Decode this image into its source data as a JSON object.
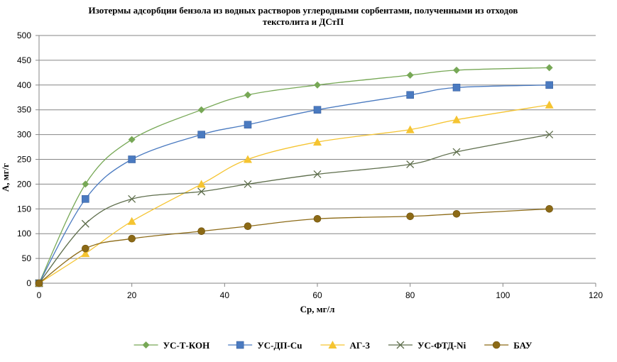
{
  "chart_data": {
    "type": "line",
    "title_line1": "Изотермы адсорбции бензола из водных растворов углеродными сорбентами, полученными из отходов",
    "title_line2": "текстолита и ДСтП",
    "xlabel": "Ср, мг/л",
    "ylabel": "А, мг/г",
    "xlim": [
      0,
      120
    ],
    "ylim": [
      0,
      500
    ],
    "xticks": [
      0,
      20,
      40,
      60,
      80,
      100,
      120
    ],
    "yticks": [
      0,
      50,
      100,
      150,
      200,
      250,
      300,
      350,
      400,
      450,
      500
    ],
    "grid": "horizontal",
    "legend_position": "bottom",
    "series": [
      {
        "name": "УС-Т-КОН",
        "color": "#77a856",
        "marker": "diamond",
        "x": [
          0,
          10,
          20,
          35,
          45,
          60,
          80,
          90,
          110
        ],
        "y": [
          0,
          200,
          290,
          350,
          380,
          400,
          420,
          430,
          435
        ]
      },
      {
        "name": "УС-ДП-Cu",
        "color": "#4a7ac0",
        "marker": "square",
        "x": [
          0,
          10,
          20,
          35,
          45,
          60,
          80,
          90,
          110
        ],
        "y": [
          0,
          170,
          250,
          300,
          320,
          350,
          380,
          395,
          400
        ]
      },
      {
        "name": "АГ-3",
        "color": "#f5c431",
        "marker": "triangle",
        "x": [
          0,
          10,
          20,
          35,
          45,
          60,
          80,
          90,
          110
        ],
        "y": [
          0,
          60,
          125,
          200,
          250,
          285,
          310,
          330,
          360
        ]
      },
      {
        "name": "УС-ФТД-Ni",
        "color": "#5e6e4c",
        "marker": "x",
        "x": [
          0,
          10,
          20,
          35,
          45,
          60,
          80,
          90,
          110
        ],
        "y": [
          0,
          120,
          170,
          185,
          200,
          220,
          240,
          265,
          300
        ]
      },
      {
        "name": "БАУ",
        "color": "#8c6a16",
        "marker": "circle",
        "x": [
          0,
          10,
          20,
          35,
          45,
          60,
          80,
          90,
          110
        ],
        "y": [
          0,
          70,
          90,
          105,
          115,
          130,
          135,
          140,
          150
        ]
      }
    ]
  }
}
